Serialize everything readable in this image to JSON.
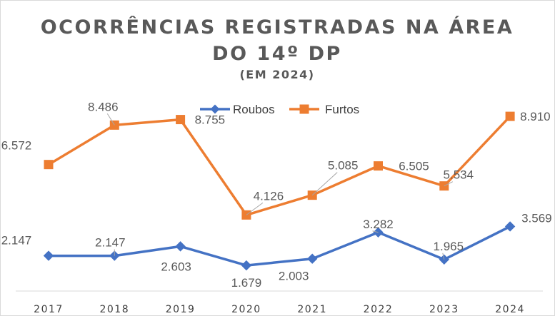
{
  "chart_data": {
    "type": "line",
    "title_line1": "OCORRÊNCIAS REGISTRADAS NA ÁREA",
    "title_line2": "DO 14º DP",
    "subtitle": "(EM 2024)",
    "categories": [
      "2017",
      "2018",
      "2019",
      "2020",
      "2021",
      "2022",
      "2023",
      "2024"
    ],
    "series": [
      {
        "name": "Roubos",
        "color": "#4472C4",
        "marker": "diamond",
        "values": [
          2147,
          2147,
          2603,
          1679,
          2003,
          3282,
          1965,
          3569
        ],
        "labels": [
          "2.147",
          "2.147",
          "2.603",
          "1.679",
          "2.003",
          "3.282",
          "1.965",
          "3.569"
        ]
      },
      {
        "name": "Furtos",
        "color": "#ED7D31",
        "marker": "square",
        "values": [
          6572,
          8486,
          8755,
          4126,
          5085,
          6505,
          5534,
          8910
        ],
        "labels": [
          "6.572",
          "8.486",
          "8.755",
          "4.126",
          "5.085",
          "6.505",
          "5.534",
          "8.910"
        ]
      }
    ],
    "ylim": [
      0,
      10000
    ],
    "grid": false,
    "legend_position": "top"
  }
}
